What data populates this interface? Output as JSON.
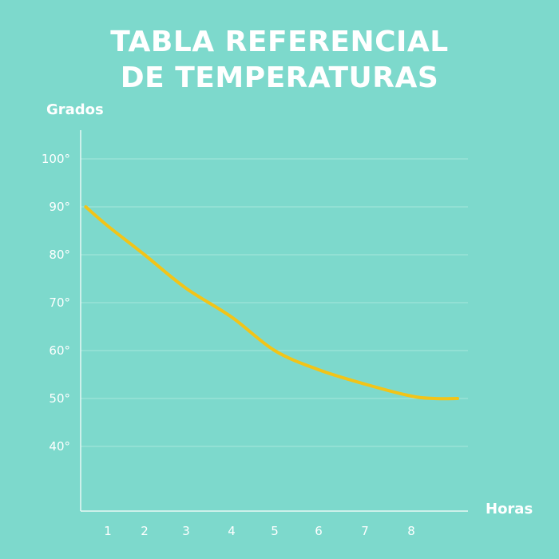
{
  "chart_data": {
    "type": "line",
    "title_lines": [
      "TABLA REFERENCIAL",
      "DE TEMPERATURAS"
    ],
    "xlabel": "Horas",
    "ylabel": "Grados",
    "y_ticks": [
      {
        "value": 100,
        "label": "100°"
      },
      {
        "value": 90,
        "label": "90°"
      },
      {
        "value": 80,
        "label": "80°"
      },
      {
        "value": 70,
        "label": "70°"
      },
      {
        "value": 60,
        "label": "60°"
      },
      {
        "value": 50,
        "label": "50°"
      },
      {
        "value": 40,
        "label": "40°"
      }
    ],
    "x_ticks": [
      {
        "value": 1,
        "label": "1"
      },
      {
        "value": 2,
        "label": "2"
      },
      {
        "value": 3,
        "label": "3"
      },
      {
        "value": 4,
        "label": "4"
      },
      {
        "value": 5,
        "label": "5"
      },
      {
        "value": 6,
        "label": "6"
      },
      {
        "value": 7,
        "label": "7"
      },
      {
        "value": 8,
        "label": "8"
      }
    ],
    "grid": true,
    "series": [
      {
        "color": "#f2c418",
        "x": [
          0.4,
          1,
          2,
          3,
          4,
          5,
          6,
          7,
          8,
          8.5,
          9
        ],
        "y": [
          90,
          86,
          80,
          73,
          67,
          60,
          56,
          53,
          50.5,
          50,
          50
        ]
      }
    ]
  }
}
